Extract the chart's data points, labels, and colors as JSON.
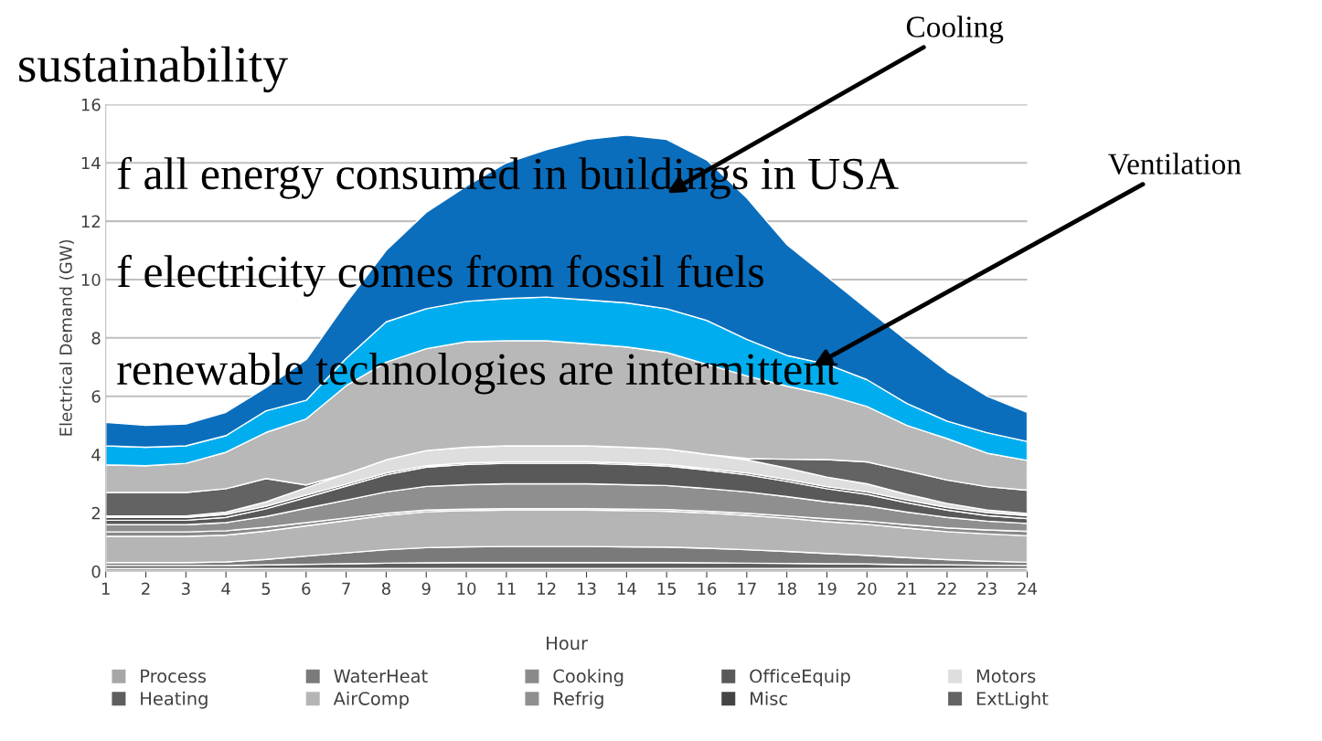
{
  "chart_data": {
    "type": "area",
    "stacked": true,
    "title": "sustainability",
    "xlabel": "Hour",
    "ylabel": "Electrical Demand (GW)",
    "categories": [
      "1",
      "2",
      "3",
      "4",
      "5",
      "6",
      "7",
      "8",
      "9",
      "10",
      "11",
      "12",
      "13",
      "14",
      "15",
      "16",
      "17",
      "18",
      "19",
      "20",
      "21",
      "22",
      "23",
      "24"
    ],
    "ylim": [
      0,
      16
    ],
    "yticks": [
      0,
      2,
      4,
      6,
      8,
      10,
      12,
      14,
      16
    ],
    "grid": "y",
    "legend": "bottom",
    "series": [
      {
        "name": "Process",
        "color": "#a6a6a6",
        "values": [
          0.1,
          0.1,
          0.1,
          0.1,
          0.1,
          0.1,
          0.1,
          0.1,
          0.1,
          0.1,
          0.1,
          0.1,
          0.1,
          0.1,
          0.1,
          0.1,
          0.1,
          0.1,
          0.1,
          0.1,
          0.1,
          0.1,
          0.1,
          0.1
        ]
      },
      {
        "name": "Heating",
        "color": "#5e5e5e",
        "values": [
          0.1,
          0.1,
          0.1,
          0.1,
          0.12,
          0.14,
          0.16,
          0.18,
          0.19,
          0.2,
          0.2,
          0.2,
          0.2,
          0.2,
          0.2,
          0.19,
          0.18,
          0.17,
          0.16,
          0.15,
          0.13,
          0.12,
          0.11,
          0.1
        ]
      },
      {
        "name": "WaterHeat",
        "color": "#7a7a7a",
        "values": [
          0.1,
          0.1,
          0.1,
          0.12,
          0.19,
          0.28,
          0.37,
          0.46,
          0.52,
          0.54,
          0.55,
          0.55,
          0.55,
          0.54,
          0.53,
          0.5,
          0.46,
          0.41,
          0.35,
          0.3,
          0.24,
          0.18,
          0.14,
          0.11
        ]
      },
      {
        "name": "AirComp",
        "color": "#b5b5b5",
        "values": [
          0.9,
          0.9,
          0.9,
          0.92,
          0.97,
          1.04,
          1.11,
          1.18,
          1.23,
          1.24,
          1.25,
          1.25,
          1.25,
          1.24,
          1.23,
          1.21,
          1.18,
          1.14,
          1.09,
          1.06,
          1.01,
          0.96,
          0.93,
          0.91
        ]
      },
      {
        "name": "Cooking",
        "color": "#8a8a8a",
        "values": [
          0.15,
          0.15,
          0.15,
          0.15,
          0.13,
          0.11,
          0.09,
          0.07,
          0.06,
          0.05,
          0.05,
          0.05,
          0.05,
          0.05,
          0.06,
          0.06,
          0.07,
          0.08,
          0.1,
          0.11,
          0.12,
          0.13,
          0.14,
          0.15
        ]
      },
      {
        "name": "Refrig",
        "color": "#8f8f8f",
        "values": [
          0.25,
          0.25,
          0.25,
          0.28,
          0.37,
          0.49,
          0.61,
          0.73,
          0.81,
          0.84,
          0.85,
          0.85,
          0.85,
          0.84,
          0.82,
          0.78,
          0.73,
          0.66,
          0.58,
          0.52,
          0.43,
          0.36,
          0.3,
          0.27
        ]
      },
      {
        "name": "OfficeEquip",
        "color": "#595959",
        "values": [
          0.15,
          0.15,
          0.15,
          0.18,
          0.26,
          0.37,
          0.48,
          0.59,
          0.66,
          0.69,
          0.7,
          0.7,
          0.7,
          0.69,
          0.67,
          0.63,
          0.59,
          0.52,
          0.45,
          0.4,
          0.32,
          0.25,
          0.19,
          0.17
        ]
      },
      {
        "name": "Misc",
        "color": "#444444",
        "values": [
          0.1,
          0.1,
          0.1,
          0.1,
          0.09,
          0.08,
          0.07,
          0.06,
          0.05,
          0.05,
          0.05,
          0.05,
          0.05,
          0.05,
          0.05,
          0.05,
          0.06,
          0.07,
          0.07,
          0.08,
          0.09,
          0.09,
          0.1,
          0.1
        ]
      },
      {
        "name": "Motors",
        "color": "#dedede",
        "values": [
          0.05,
          0.05,
          0.05,
          0.08,
          0.15,
          0.25,
          0.35,
          0.45,
          0.52,
          0.54,
          0.55,
          0.55,
          0.55,
          0.54,
          0.53,
          0.49,
          0.45,
          0.39,
          0.33,
          0.28,
          0.2,
          0.14,
          0.09,
          0.07
        ]
      },
      {
        "name": "ExtLight",
        "color": "#636363",
        "values": [
          0.8,
          0.8,
          0.8,
          0.8,
          0.8,
          0.1,
          0,
          0,
          0,
          0,
          0,
          0,
          0,
          0,
          0,
          0,
          0.05,
          0.3,
          0.6,
          0.75,
          0.8,
          0.8,
          0.8,
          0.8
        ]
      },
      {
        "color": "#b8b8b8",
        "values": [
          0.95,
          0.92,
          1.0,
          1.25,
          1.58,
          2.26,
          3.02,
          3.35,
          3.49,
          3.62,
          3.6,
          3.6,
          3.5,
          3.44,
          3.31,
          3.09,
          2.83,
          2.51,
          2.22,
          1.9,
          1.56,
          1.42,
          1.15,
          1.02
        ]
      },
      {
        "color": "#00aeef",
        "values": [
          0.65,
          0.63,
          0.6,
          0.57,
          0.74,
          0.64,
          0.94,
          1.38,
          1.37,
          1.38,
          1.45,
          1.5,
          1.5,
          1.51,
          1.5,
          1.5,
          1.25,
          1.05,
          1.05,
          0.92,
          0.75,
          0.6,
          0.7,
          0.65
        ]
      },
      {
        "color": "#0a6ebd",
        "values": [
          0.8,
          0.75,
          0.75,
          0.8,
          0.8,
          1.39,
          1.9,
          2.45,
          3.3,
          3.95,
          4.65,
          5.05,
          5.5,
          5.75,
          5.8,
          5.5,
          4.85,
          3.8,
          3.0,
          2.43,
          2.15,
          1.7,
          1.25,
          1.0
        ]
      }
    ],
    "annotations": [
      "Cooling",
      "Ventilation",
      "f all energy consumed in buildings in USA",
      "f electricity comes from fossil fuels",
      "renewable technologies are intermittent"
    ]
  }
}
